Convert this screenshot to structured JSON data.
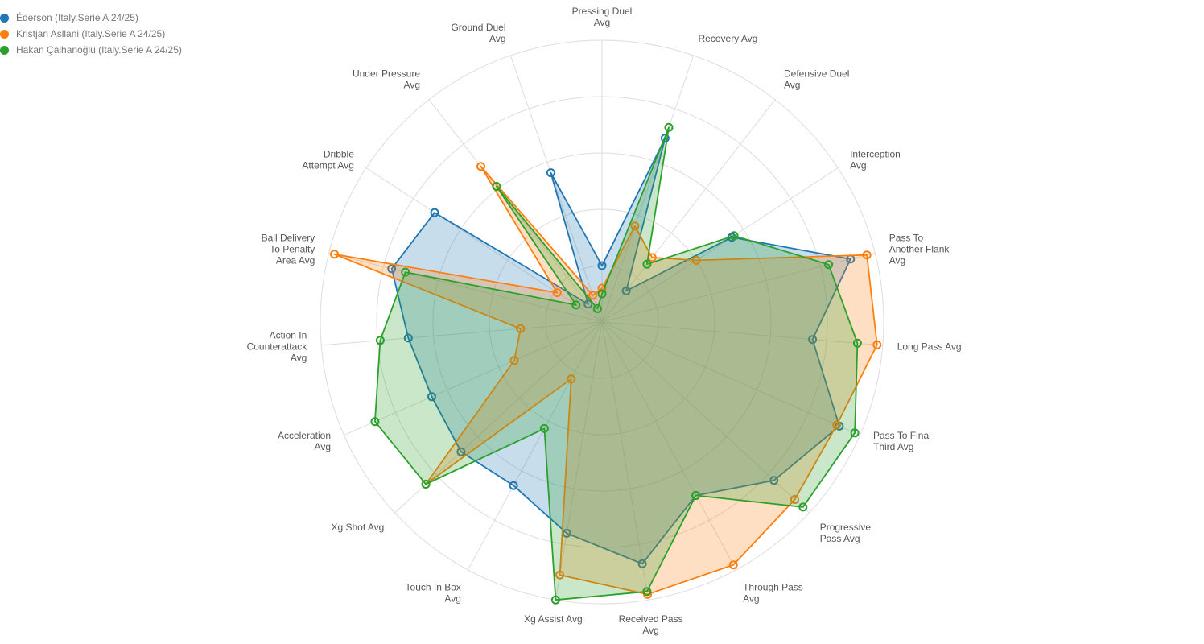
{
  "chart_data": {
    "type": "radar",
    "title": "",
    "legend_position": "top-left",
    "grid": true,
    "rlim": [
      0,
      1
    ],
    "axes": [
      {
        "id": "pressing-duel",
        "lines": [
          "Pressing Duel",
          "Avg"
        ]
      },
      {
        "id": "recovery",
        "lines": [
          "Recovery Avg"
        ]
      },
      {
        "id": "defensive-duel",
        "lines": [
          "Defensive Duel",
          "Avg"
        ]
      },
      {
        "id": "interception",
        "lines": [
          "Interception",
          "Avg"
        ]
      },
      {
        "id": "pass-to-another-flank",
        "lines": [
          "Pass To",
          "Another Flank",
          "Avg"
        ]
      },
      {
        "id": "long-pass",
        "lines": [
          "Long Pass Avg"
        ]
      },
      {
        "id": "pass-to-final-third",
        "lines": [
          "Pass To Final",
          "Third Avg"
        ]
      },
      {
        "id": "progressive-pass",
        "lines": [
          "Progressive",
          "Pass Avg"
        ]
      },
      {
        "id": "through-pass",
        "lines": [
          "Through Pass",
          "Avg"
        ]
      },
      {
        "id": "received-pass",
        "lines": [
          "Received Pass",
          "Avg"
        ]
      },
      {
        "id": "xg-assist",
        "lines": [
          "Xg Assist Avg"
        ]
      },
      {
        "id": "touch-in-box",
        "lines": [
          "Touch In Box",
          "Avg"
        ]
      },
      {
        "id": "xg-shot",
        "lines": [
          "Xg Shot Avg"
        ]
      },
      {
        "id": "acceleration",
        "lines": [
          "Acceleration",
          "Avg"
        ]
      },
      {
        "id": "action-in-counterattack",
        "lines": [
          "Action In",
          "Counterattack",
          "Avg"
        ]
      },
      {
        "id": "ball-delivery-to-penalty-area",
        "lines": [
          "Ball Delivery",
          "To Penalty",
          "Area Avg"
        ]
      },
      {
        "id": "dribble-attempt",
        "lines": [
          "Dribble",
          "Attempt Avg"
        ]
      },
      {
        "id": "under-pressure",
        "lines": [
          "Under Pressure",
          "Avg"
        ]
      },
      {
        "id": "ground-duel",
        "lines": [
          "Ground Duel",
          "Avg"
        ]
      }
    ],
    "series": [
      {
        "name": "Éderson (Italy.Serie A 24/25)",
        "color": "#1f77b4",
        "values": [
          0.2,
          0.69,
          0.14,
          0.55,
          0.91,
          0.75,
          0.92,
          0.83,
          0.7,
          0.87,
          0.76,
          0.66,
          0.68,
          0.66,
          0.69,
          0.77,
          0.71,
          0.08,
          0.56
        ]
      },
      {
        "name": "Kristjan Asllani (Italy.Serie A 24/25)",
        "color": "#ff7f0e",
        "values": [
          0.12,
          0.36,
          0.29,
          0.4,
          0.97,
          0.98,
          0.91,
          0.93,
          0.98,
          0.98,
          0.91,
          0.23,
          0.85,
          0.34,
          0.29,
          0.98,
          0.19,
          0.7,
          0.1
        ]
      },
      {
        "name": "Hakan Çalhanoğlu (Italy.Serie A 24/25)",
        "color": "#2ca02c",
        "values": [
          0.1,
          0.73,
          0.26,
          0.56,
          0.83,
          0.91,
          0.98,
          0.97,
          0.7,
          0.97,
          1.0,
          0.43,
          0.85,
          0.88,
          0.79,
          0.72,
          0.11,
          0.61,
          0.05
        ]
      }
    ]
  }
}
